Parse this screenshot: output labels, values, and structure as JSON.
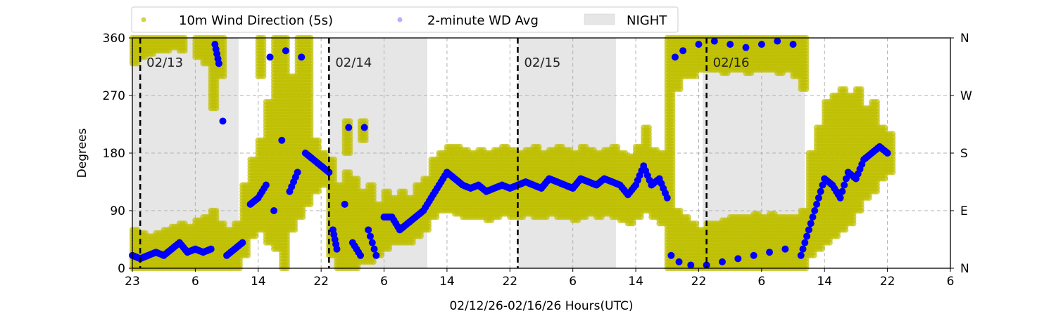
{
  "chart_data": {
    "type": "scatter",
    "title": "",
    "xlabel": "02/12/26-02/16/26  Hours(UTC)",
    "ylabel": "Degrees",
    "x_unit": "hours since 02/12 23:00 UTC",
    "xlim": [
      0,
      104
    ],
    "ylim": [
      0,
      360
    ],
    "grid": true,
    "legend_placement": "top",
    "x_ticks": [
      0,
      8,
      16,
      24,
      32,
      40,
      48,
      56,
      64,
      72,
      80,
      88,
      96,
      104
    ],
    "x_tick_labels": [
      "23",
      "6",
      "14",
      "22",
      "6",
      "14",
      "22",
      "6",
      "14",
      "22",
      "6",
      "14",
      "22",
      "6"
    ],
    "y_ticks": [
      0,
      90,
      180,
      270,
      360
    ],
    "y_tick_labels": [
      "0",
      "90",
      "180",
      "270",
      "360"
    ],
    "y2_tick_labels": [
      "N",
      "E",
      "S",
      "W",
      "N"
    ],
    "day_markers": [
      {
        "x": 1,
        "label": "02/13"
      },
      {
        "x": 25,
        "label": "02/14"
      },
      {
        "x": 49,
        "label": "02/15"
      },
      {
        "x": 73,
        "label": "02/16"
      }
    ],
    "night_periods": [
      [
        0,
        13.5
      ],
      [
        25,
        37.5
      ],
      [
        49,
        61.5
      ],
      [
        72.5,
        85.5
      ]
    ],
    "legend": [
      "10m Wind Direction (5s)",
      "2-minute WD Avg",
      "NIGHT"
    ],
    "colors": {
      "wd_5s": "#bfbf00",
      "wd_avg": "#0000ff",
      "night": "#e6e6e6"
    },
    "series": [
      {
        "name": "10m Wind Direction (5s)",
        "kind": "range_per_hour",
        "ranges": [
          [
            0,
            0,
            60
          ],
          [
            0,
            320,
            360
          ],
          [
            1,
            0,
            55
          ],
          [
            1,
            330,
            360
          ],
          [
            2,
            0,
            50
          ],
          [
            2,
            335,
            360
          ],
          [
            3,
            0,
            55
          ],
          [
            3,
            340,
            360
          ],
          [
            4,
            0,
            60
          ],
          [
            4,
            340,
            360
          ],
          [
            5,
            0,
            65
          ],
          [
            5,
            345,
            360
          ],
          [
            6,
            0,
            70
          ],
          [
            6,
            340,
            360
          ],
          [
            7,
            0,
            65
          ],
          [
            8,
            0,
            75
          ],
          [
            8,
            330,
            360
          ],
          [
            9,
            0,
            80
          ],
          [
            9,
            320,
            360
          ],
          [
            10,
            0,
            90
          ],
          [
            10,
            250,
            360
          ],
          [
            11,
            0,
            70
          ],
          [
            11,
            300,
            360
          ],
          [
            12,
            0,
            60
          ],
          [
            13,
            0,
            70
          ],
          [
            14,
            20,
            130
          ],
          [
            15,
            50,
            170
          ],
          [
            16,
            60,
            200
          ],
          [
            16,
            300,
            360
          ],
          [
            17,
            40,
            260
          ],
          [
            18,
            30,
            360
          ],
          [
            19,
            0,
            360
          ],
          [
            20,
            60,
            300
          ],
          [
            21,
            80,
            360
          ],
          [
            22,
            100,
            360
          ],
          [
            23,
            120,
            200
          ],
          [
            24,
            130,
            180
          ],
          [
            25,
            20,
            170
          ],
          [
            26,
            0,
            130
          ],
          [
            27,
            0,
            150
          ],
          [
            27,
            180,
            230
          ],
          [
            28,
            0,
            140
          ],
          [
            29,
            10,
            120
          ],
          [
            29,
            200,
            230
          ],
          [
            30,
            10,
            130
          ],
          [
            31,
            20,
            100
          ],
          [
            32,
            30,
            120
          ],
          [
            33,
            40,
            110
          ],
          [
            34,
            40,
            120
          ],
          [
            35,
            40,
            110
          ],
          [
            36,
            50,
            130
          ],
          [
            37,
            60,
            140
          ],
          [
            38,
            80,
            170
          ],
          [
            39,
            90,
            180
          ],
          [
            40,
            90,
            190
          ],
          [
            41,
            85,
            190
          ],
          [
            42,
            80,
            185
          ],
          [
            43,
            80,
            180
          ],
          [
            44,
            80,
            185
          ],
          [
            45,
            75,
            180
          ],
          [
            46,
            80,
            185
          ],
          [
            47,
            85,
            190
          ],
          [
            48,
            80,
            185
          ],
          [
            49,
            80,
            180
          ],
          [
            50,
            85,
            185
          ],
          [
            51,
            80,
            190
          ],
          [
            52,
            80,
            180
          ],
          [
            53,
            85,
            185
          ],
          [
            54,
            80,
            190
          ],
          [
            55,
            80,
            185
          ],
          [
            56,
            75,
            180
          ],
          [
            57,
            80,
            190
          ],
          [
            58,
            85,
            185
          ],
          [
            59,
            80,
            180
          ],
          [
            60,
            85,
            185
          ],
          [
            61,
            80,
            190
          ],
          [
            62,
            75,
            180
          ],
          [
            63,
            70,
            175
          ],
          [
            64,
            80,
            190
          ],
          [
            65,
            90,
            220
          ],
          [
            66,
            80,
            185
          ],
          [
            67,
            70,
            180
          ],
          [
            68,
            0,
            360
          ],
          [
            69,
            0,
            90
          ],
          [
            69,
            280,
            360
          ],
          [
            70,
            0,
            80
          ],
          [
            70,
            300,
            360
          ],
          [
            71,
            0,
            70
          ],
          [
            71,
            300,
            360
          ],
          [
            72,
            0,
            60
          ],
          [
            72,
            310,
            360
          ],
          [
            73,
            0,
            70
          ],
          [
            73,
            310,
            360
          ],
          [
            74,
            0,
            70
          ],
          [
            74,
            310,
            360
          ],
          [
            75,
            0,
            75
          ],
          [
            75,
            305,
            360
          ],
          [
            76,
            0,
            80
          ],
          [
            76,
            310,
            360
          ],
          [
            77,
            0,
            80
          ],
          [
            77,
            310,
            360
          ],
          [
            78,
            0,
            80
          ],
          [
            78,
            305,
            360
          ],
          [
            79,
            0,
            85
          ],
          [
            79,
            310,
            360
          ],
          [
            80,
            0,
            80
          ],
          [
            80,
            310,
            360
          ],
          [
            81,
            0,
            85
          ],
          [
            81,
            310,
            360
          ],
          [
            82,
            0,
            80
          ],
          [
            82,
            305,
            360
          ],
          [
            83,
            0,
            80
          ],
          [
            83,
            310,
            360
          ],
          [
            84,
            0,
            80
          ],
          [
            84,
            300,
            360
          ],
          [
            85,
            0,
            90
          ],
          [
            85,
            280,
            360
          ],
          [
            86,
            20,
            180
          ],
          [
            87,
            30,
            220
          ],
          [
            88,
            40,
            260
          ],
          [
            89,
            50,
            270
          ],
          [
            90,
            60,
            280
          ],
          [
            91,
            70,
            270
          ],
          [
            92,
            90,
            280
          ],
          [
            93,
            110,
            250
          ],
          [
            94,
            120,
            260
          ],
          [
            95,
            140,
            220
          ],
          [
            96,
            150,
            210
          ]
        ]
      },
      {
        "name": "2-minute WD Avg",
        "kind": "points",
        "points": [
          [
            0,
            20
          ],
          [
            1,
            15
          ],
          [
            2,
            20
          ],
          [
            3,
            25
          ],
          [
            4,
            20
          ],
          [
            5,
            30
          ],
          [
            6,
            40
          ],
          [
            7,
            25
          ],
          [
            8,
            30
          ],
          [
            9,
            25
          ],
          [
            10,
            30
          ],
          [
            10.5,
            350
          ],
          [
            11,
            320
          ],
          [
            11.5,
            230
          ],
          [
            12,
            20
          ],
          [
            13,
            30
          ],
          [
            14,
            40
          ],
          [
            15,
            100
          ],
          [
            16,
            110
          ],
          [
            17,
            130
          ],
          [
            17.5,
            330
          ],
          [
            18,
            90
          ],
          [
            19,
            200
          ],
          [
            19.5,
            340
          ],
          [
            20,
            120
          ],
          [
            21,
            150
          ],
          [
            21.5,
            330
          ],
          [
            22,
            180
          ],
          [
            23,
            170
          ],
          [
            24,
            160
          ],
          [
            25,
            150
          ],
          [
            25.5,
            60
          ],
          [
            26,
            30
          ],
          [
            27,
            100
          ],
          [
            27.5,
            220
          ],
          [
            28,
            40
          ],
          [
            29,
            20
          ],
          [
            29.5,
            220
          ],
          [
            30,
            60
          ],
          [
            31,
            20
          ],
          [
            32,
            80
          ],
          [
            33,
            80
          ],
          [
            34,
            60
          ],
          [
            35,
            70
          ],
          [
            36,
            80
          ],
          [
            37,
            90
          ],
          [
            38,
            110
          ],
          [
            39,
            130
          ],
          [
            40,
            150
          ],
          [
            41,
            140
          ],
          [
            42,
            130
          ],
          [
            43,
            125
          ],
          [
            44,
            130
          ],
          [
            45,
            120
          ],
          [
            46,
            125
          ],
          [
            47,
            130
          ],
          [
            48,
            125
          ],
          [
            49,
            130
          ],
          [
            50,
            135
          ],
          [
            51,
            130
          ],
          [
            52,
            125
          ],
          [
            53,
            140
          ],
          [
            54,
            135
          ],
          [
            55,
            130
          ],
          [
            56,
            125
          ],
          [
            57,
            140
          ],
          [
            58,
            135
          ],
          [
            59,
            130
          ],
          [
            60,
            140
          ],
          [
            61,
            135
          ],
          [
            62,
            130
          ],
          [
            63,
            115
          ],
          [
            64,
            130
          ],
          [
            65,
            160
          ],
          [
            66,
            130
          ],
          [
            67,
            140
          ],
          [
            68,
            110
          ],
          [
            68.5,
            20
          ],
          [
            69,
            330
          ],
          [
            69.5,
            10
          ],
          [
            70,
            340
          ],
          [
            71,
            5
          ],
          [
            72,
            350
          ],
          [
            73,
            5
          ],
          [
            74,
            355
          ],
          [
            75,
            10
          ],
          [
            76,
            350
          ],
          [
            77,
            15
          ],
          [
            78,
            345
          ],
          [
            79,
            20
          ],
          [
            80,
            350
          ],
          [
            81,
            25
          ],
          [
            82,
            355
          ],
          [
            83,
            30
          ],
          [
            84,
            350
          ],
          [
            85,
            20
          ],
          [
            86,
            60
          ],
          [
            87,
            100
          ],
          [
            88,
            140
          ],
          [
            89,
            130
          ],
          [
            90,
            110
          ],
          [
            91,
            150
          ],
          [
            92,
            140
          ],
          [
            93,
            170
          ],
          [
            94,
            180
          ],
          [
            95,
            190
          ],
          [
            96,
            180
          ]
        ]
      }
    ]
  }
}
